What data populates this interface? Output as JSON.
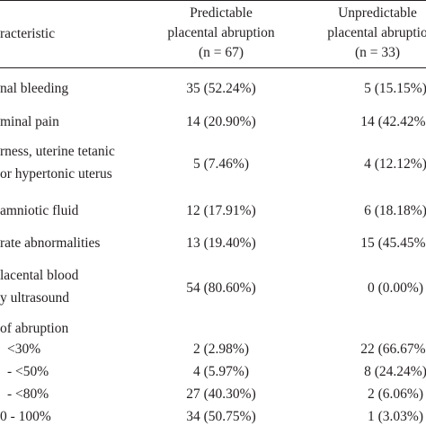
{
  "table": {
    "header": {
      "characteristic": "racteristic",
      "col1": [
        "Predictable",
        "placental abruption",
        "(n = 67)"
      ],
      "col2": [
        "Unpredictable",
        "placental abruptio",
        "(n = 33)"
      ]
    },
    "rows": [
      {
        "label": [
          "nal bleeding"
        ],
        "col1": "35 (52.24%)",
        "col2": "5 (15.15%)"
      },
      {
        "label": [
          "minal pain"
        ],
        "col1": "14 (20.90%)",
        "col2": "14 (42.42%)"
      },
      {
        "label": [
          "rness, uterine tetanic",
          "or hypertonic uterus"
        ],
        "col1": "5 (7.46%)",
        "col2": "4 (12.12%)"
      },
      {
        "label": [
          "amniotic fluid"
        ],
        "col1": "12 (17.91%)",
        "col2": "6 (18.18%)"
      },
      {
        "label": [
          "rate abnormalities"
        ],
        "col1": "13 (19.40%)",
        "col2": "15 (45.45%)"
      },
      {
        "label": [
          "lacental blood",
          "y ultrasound"
        ],
        "col1": "54 (80.60%)",
        "col2": "0 (0.00%)"
      },
      {
        "label": [
          "of abruption"
        ],
        "col1": "",
        "col2": ""
      },
      {
        "label": [
          "<30%"
        ],
        "col1": "2 (2.98%)",
        "col2": "22 (66.67%)"
      },
      {
        "label": [
          "- <50%"
        ],
        "col1": "4 (5.97%)",
        "col2": "8 (24.24%)"
      },
      {
        "label": [
          "- <80%"
        ],
        "col1": "27 (40.30%)",
        "col2": "2 (6.06%)"
      },
      {
        "label": [
          "0 - 100%"
        ],
        "col1": "34 (50.75%)",
        "col2": "1 (3.03%)"
      }
    ]
  }
}
